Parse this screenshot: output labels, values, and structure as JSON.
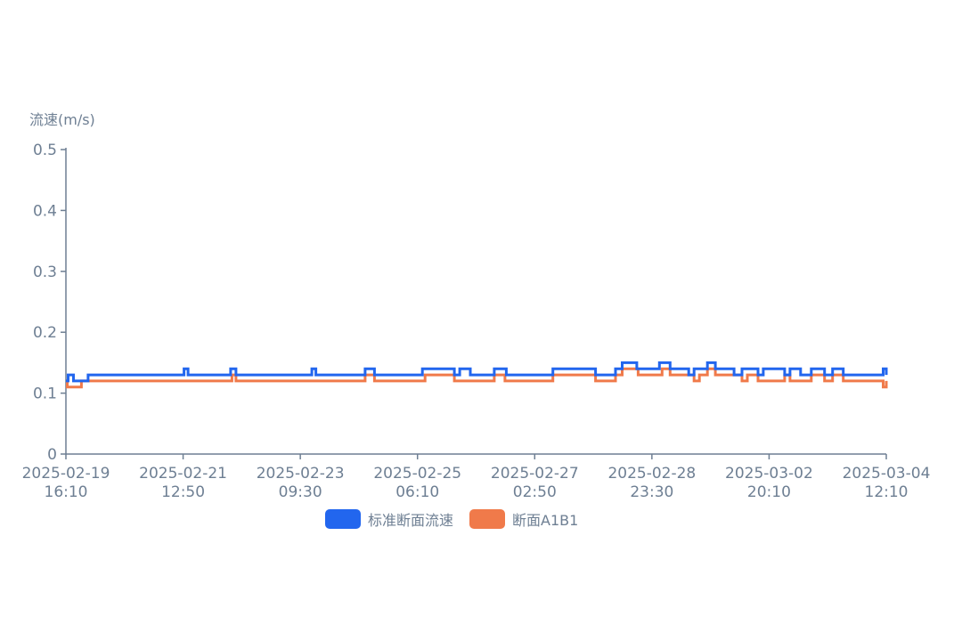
{
  "chart_data": {
    "type": "line",
    "ylabel": "流速(m/s)",
    "ylim": [
      0,
      0.5
    ],
    "yticks": [
      "0",
      "0.1",
      "0.2",
      "0.3",
      "0.4",
      "0.5"
    ],
    "x_range": [
      "2025-02-19 16:10",
      "2025-03-04 12:10"
    ],
    "xticks": [
      {
        "date": "2025-02-19",
        "time": "16:10"
      },
      {
        "date": "2025-02-21",
        "time": "12:50"
      },
      {
        "date": "2025-02-23",
        "time": "09:30"
      },
      {
        "date": "2025-02-25",
        "time": "06:10"
      },
      {
        "date": "2025-02-27",
        "time": "02:50"
      },
      {
        "date": "2025-02-28",
        "time": "23:30"
      },
      {
        "date": "2025-03-02",
        "time": "20:10"
      },
      {
        "date": "2025-03-04",
        "time": "12:10"
      }
    ],
    "legend_position": "bottom",
    "grid": false,
    "series": [
      {
        "name": "标准断面流速",
        "color": "#2266ee",
        "points": [
          [
            "2025-02-19 16:10",
            0.12
          ],
          [
            "2025-02-19 17:00",
            0.13
          ],
          [
            "2025-02-19 19:00",
            0.12
          ],
          [
            "2025-02-20 00:30",
            0.13
          ],
          [
            "2025-02-21 12:30",
            0.14
          ],
          [
            "2025-02-21 14:00",
            0.13
          ],
          [
            "2025-02-22 06:00",
            0.14
          ],
          [
            "2025-02-22 08:00",
            0.13
          ],
          [
            "2025-02-23 12:30",
            0.14
          ],
          [
            "2025-02-23 14:00",
            0.13
          ],
          [
            "2025-02-24 08:30",
            0.14
          ],
          [
            "2025-02-24 12:00",
            0.13
          ],
          [
            "2025-02-25 06:00",
            0.14
          ],
          [
            "2025-02-25 18:00",
            0.13
          ],
          [
            "2025-02-25 20:00",
            0.14
          ],
          [
            "2025-02-26 00:00",
            0.13
          ],
          [
            "2025-02-26 09:00",
            0.14
          ],
          [
            "2025-02-26 13:30",
            0.13
          ],
          [
            "2025-02-27 00:00",
            0.13
          ],
          [
            "2025-02-27 07:00",
            0.14
          ],
          [
            "2025-02-27 23:00",
            0.13
          ],
          [
            "2025-02-28 06:30",
            0.14
          ],
          [
            "2025-02-28 09:00",
            0.15
          ],
          [
            "2025-02-28 14:30",
            0.14
          ],
          [
            "2025-02-28 23:00",
            0.15
          ],
          [
            "2025-03-01 03:00",
            0.14
          ],
          [
            "2025-03-01 10:00",
            0.13
          ],
          [
            "2025-03-01 12:00",
            0.14
          ],
          [
            "2025-03-01 17:00",
            0.15
          ],
          [
            "2025-03-01 20:00",
            0.14
          ],
          [
            "2025-03-02 03:00",
            0.13
          ],
          [
            "2025-03-02 06:00",
            0.14
          ],
          [
            "2025-03-02 12:00",
            0.13
          ],
          [
            "2025-03-02 14:00",
            0.14
          ],
          [
            "2025-03-02 22:00",
            0.13
          ],
          [
            "2025-03-03 00:00",
            0.14
          ],
          [
            "2025-03-03 04:00",
            0.13
          ],
          [
            "2025-03-03 08:00",
            0.14
          ],
          [
            "2025-03-03 13:00",
            0.13
          ],
          [
            "2025-03-03 16:00",
            0.14
          ],
          [
            "2025-03-03 20:00",
            0.13
          ],
          [
            "2025-03-04 10:00",
            0.13
          ],
          [
            "2025-03-04 11:00",
            0.14
          ],
          [
            "2025-03-04 12:10",
            0.13
          ]
        ]
      },
      {
        "name": "断面A1B1",
        "color": "#f07a4a",
        "points": [
          [
            "2025-02-19 16:10",
            0.12
          ],
          [
            "2025-02-19 16:40",
            0.11
          ],
          [
            "2025-02-19 22:00",
            0.12
          ],
          [
            "2025-02-22 06:30",
            0.13
          ],
          [
            "2025-02-22 08:00",
            0.12
          ],
          [
            "2025-02-24 08:30",
            0.13
          ],
          [
            "2025-02-24 12:00",
            0.12
          ],
          [
            "2025-02-25 07:00",
            0.13
          ],
          [
            "2025-02-25 18:00",
            0.12
          ],
          [
            "2025-02-26 09:00",
            0.13
          ],
          [
            "2025-02-26 13:00",
            0.12
          ],
          [
            "2025-02-27 07:00",
            0.13
          ],
          [
            "2025-02-27 23:00",
            0.12
          ],
          [
            "2025-02-28 06:30",
            0.13
          ],
          [
            "2025-02-28 09:00",
            0.14
          ],
          [
            "2025-02-28 15:00",
            0.13
          ],
          [
            "2025-03-01 00:00",
            0.14
          ],
          [
            "2025-03-01 03:00",
            0.13
          ],
          [
            "2025-03-01 12:00",
            0.12
          ],
          [
            "2025-03-01 14:00",
            0.13
          ],
          [
            "2025-03-01 17:00",
            0.14
          ],
          [
            "2025-03-01 20:00",
            0.13
          ],
          [
            "2025-03-02 03:00",
            0.13
          ],
          [
            "2025-03-02 06:00",
            0.12
          ],
          [
            "2025-03-02 08:00",
            0.13
          ],
          [
            "2025-03-02 12:00",
            0.12
          ],
          [
            "2025-03-02 22:00",
            0.13
          ],
          [
            "2025-03-03 00:00",
            0.12
          ],
          [
            "2025-03-03 08:00",
            0.13
          ],
          [
            "2025-03-03 13:00",
            0.12
          ],
          [
            "2025-03-03 16:00",
            0.13
          ],
          [
            "2025-03-03 20:00",
            0.12
          ],
          [
            "2025-03-04 11:00",
            0.11
          ],
          [
            "2025-03-04 12:10",
            0.12
          ]
        ]
      }
    ]
  }
}
